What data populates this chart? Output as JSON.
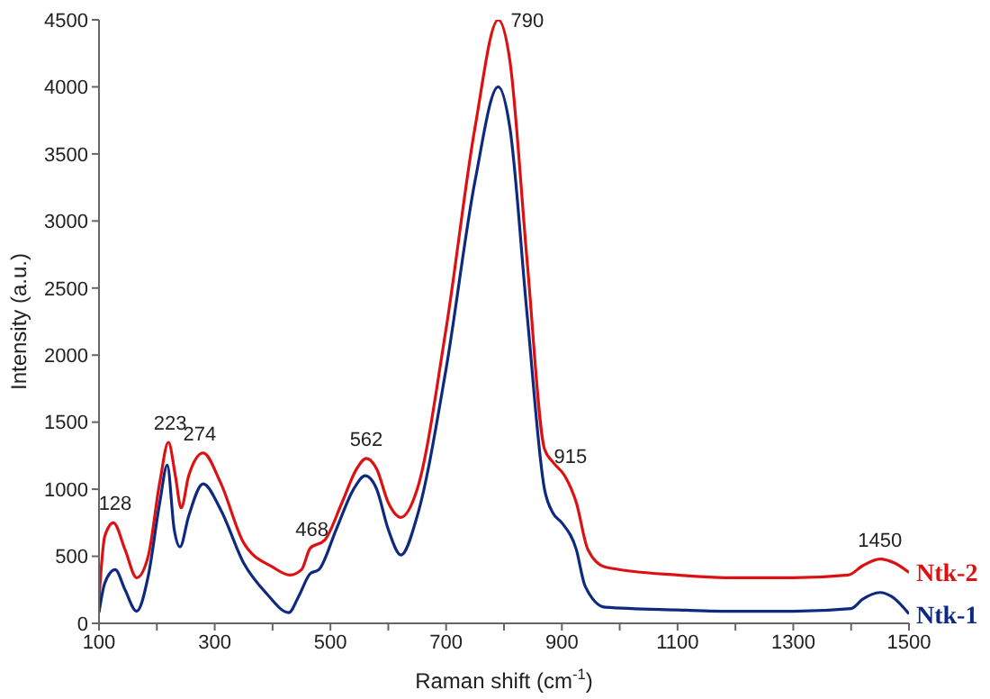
{
  "chart_data": {
    "type": "line",
    "xlabel": "Raman shift (cm$^{-1}$)",
    "ylabel": "Intensity (a.u.)",
    "xlim": [
      100,
      1500
    ],
    "xticks": [
      100,
      {
        "value": 200,
        "label": null
      },
      300,
      {
        "value": 400,
        "label": null
      },
      500,
      {
        "value": 600,
        "label": null
      },
      700,
      {
        "value": 800,
        "label": null
      },
      900,
      {
        "value": 1000,
        "label": null
      },
      1100,
      {
        "value": 1200,
        "label": null
      },
      1300,
      {
        "value": 1400,
        "label": null
      },
      1500
    ],
    "ylim": [
      0,
      4500
    ],
    "yticks": [
      0,
      500,
      1000,
      1500,
      2000,
      2500,
      3000,
      3500,
      4000,
      4500
    ],
    "grid": false,
    "legend": false,
    "marker": "none",
    "line_style": "solid",
    "series": [
      {
        "name": "Ntk-2",
        "color": "#dd1111",
        "x": [
          100,
          110,
          125,
          145,
          165,
          185,
          205,
          220,
          232,
          242,
          255,
          280,
          310,
          350,
          400,
          430,
          450,
          465,
          490,
          520,
          545,
          562,
          580,
          600,
          622,
          650,
          700,
          750,
          790,
          810,
          840,
          870,
          885,
          905,
          925,
          945,
          975,
          1100,
          1200,
          1300,
          1395,
          1420,
          1450,
          1475,
          1500
        ],
        "values": [
          180,
          650,
          750,
          550,
          340,
          500,
          1050,
          1350,
          1100,
          860,
          1100,
          1270,
          1050,
          600,
          420,
          360,
          400,
          560,
          620,
          900,
          1150,
          1230,
          1150,
          900,
          790,
          1000,
          2200,
          3700,
          4500,
          4200,
          2700,
          1300,
          1200,
          1100,
          900,
          550,
          420,
          360,
          340,
          340,
          360,
          430,
          480,
          450,
          380
        ]
      },
      {
        "name": "Ntk-1",
        "color": "#0d2a80",
        "x": [
          100,
          110,
          128,
          145,
          165,
          185,
          205,
          218,
          230,
          240,
          255,
          280,
          310,
          350,
          390,
          428,
          445,
          465,
          480,
          510,
          540,
          560,
          580,
          600,
          622,
          650,
          700,
          750,
          790,
          810,
          840,
          870,
          885,
          900,
          925,
          940,
          975,
          1100,
          1200,
          1300,
          1400,
          1420,
          1450,
          1470,
          1500
        ],
        "values": [
          80,
          300,
          400,
          250,
          90,
          350,
          900,
          1180,
          700,
          570,
          800,
          1040,
          850,
          450,
          220,
          80,
          200,
          370,
          400,
          700,
          1000,
          1100,
          1000,
          700,
          510,
          800,
          1900,
          3300,
          4000,
          3700,
          2300,
          1000,
          820,
          750,
          550,
          280,
          120,
          100,
          90,
          90,
          110,
          180,
          230,
          200,
          70
        ]
      }
    ],
    "annotations": [
      {
        "text": "128",
        "x": 128,
        "y": 750
      },
      {
        "text": "223",
        "x": 223,
        "y": 1350
      },
      {
        "text": "274",
        "x": 274,
        "y": 1270
      },
      {
        "text": "468",
        "x": 468,
        "y": 560
      },
      {
        "text": "562",
        "x": 562,
        "y": 1230
      },
      {
        "text": "790",
        "x": 790,
        "y": 4500
      },
      {
        "text": "915",
        "x": 915,
        "y": 1100
      },
      {
        "text": "1450",
        "x": 1450,
        "y": 480
      }
    ]
  }
}
